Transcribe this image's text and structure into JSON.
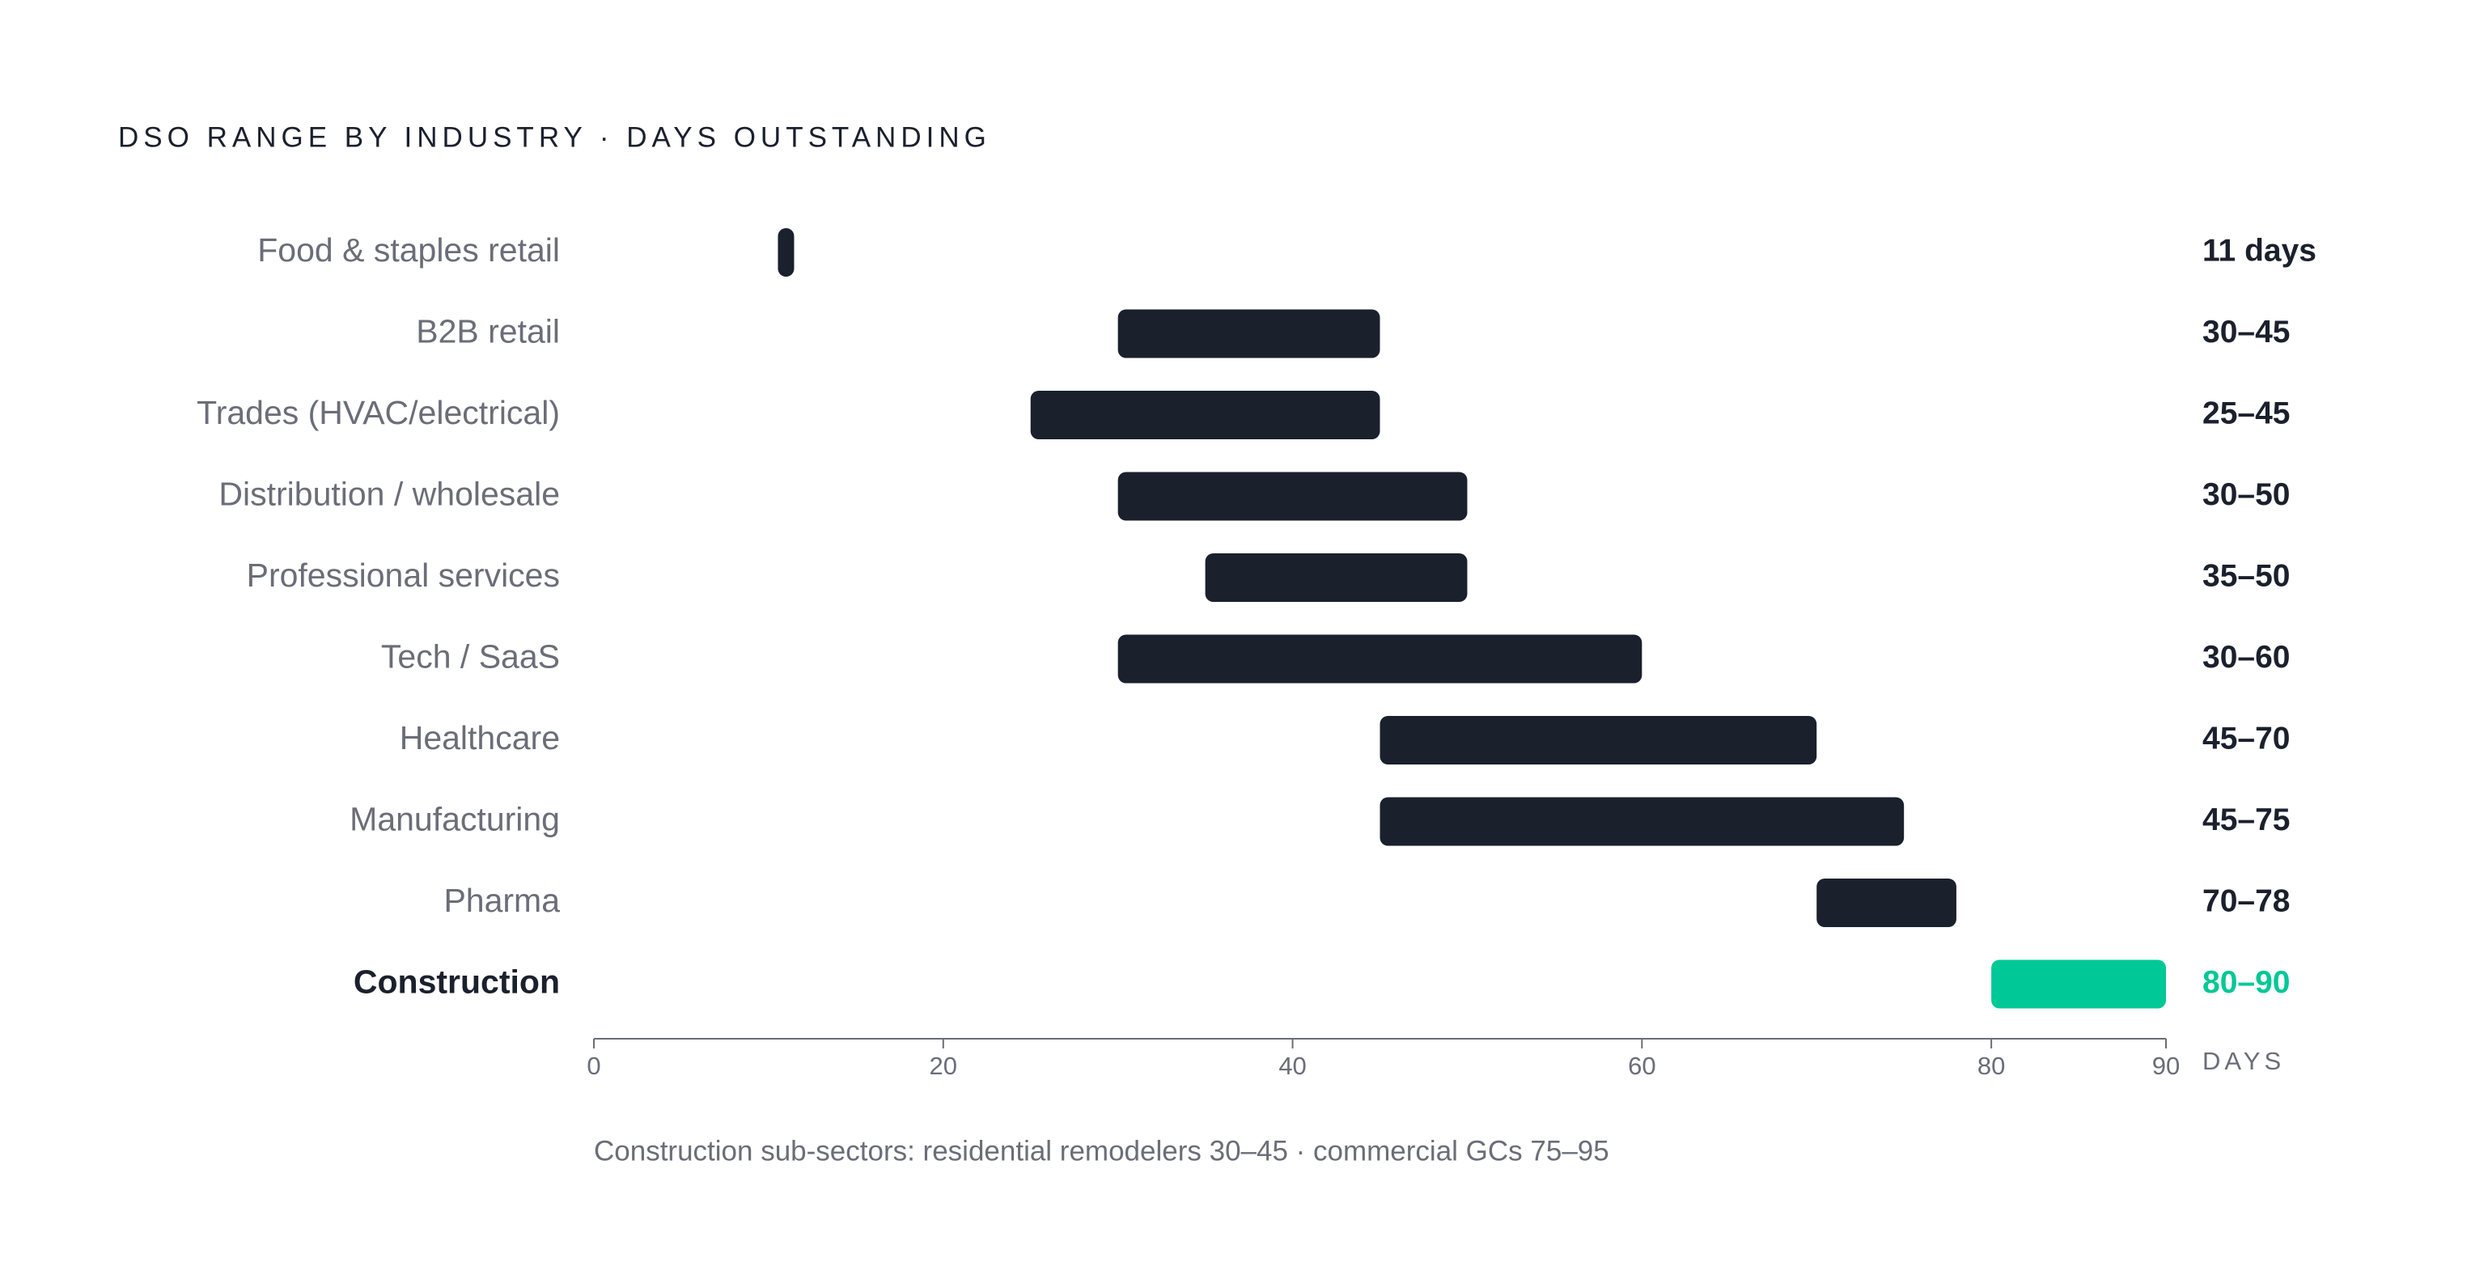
{
  "chart_data": {
    "type": "range-bar",
    "title": "DSO RANGE BY INDUSTRY · DAYS OUTSTANDING",
    "categories": [
      "Food & staples retail",
      "B2B retail",
      "Trades (HVAC/electrical)",
      "Distribution / wholesale",
      "Professional services",
      "Tech / SaaS",
      "Healthcare",
      "Manufacturing",
      "Pharma",
      "Construction"
    ],
    "low": [
      11,
      30,
      25,
      30,
      35,
      30,
      45,
      45,
      70,
      80
    ],
    "high": [
      11,
      45,
      45,
      50,
      50,
      60,
      70,
      75,
      78,
      90
    ],
    "value_labels": [
      "11 days",
      "30–45",
      "25–45",
      "30–50",
      "35–50",
      "30–60",
      "45–70",
      "45–75",
      "70–78",
      "80–90"
    ],
    "color": "#1b202d",
    "highlight_color": "#00c896",
    "highlight_index": 9,
    "xlim": [
      0,
      90
    ],
    "xticks": [
      0,
      20,
      40,
      60,
      80,
      90
    ],
    "xlabel": "DAYS",
    "footnote": "Construction sub-sectors: residential remodelers 30–45 · commercial GCs 75–95",
    "grid": false
  }
}
